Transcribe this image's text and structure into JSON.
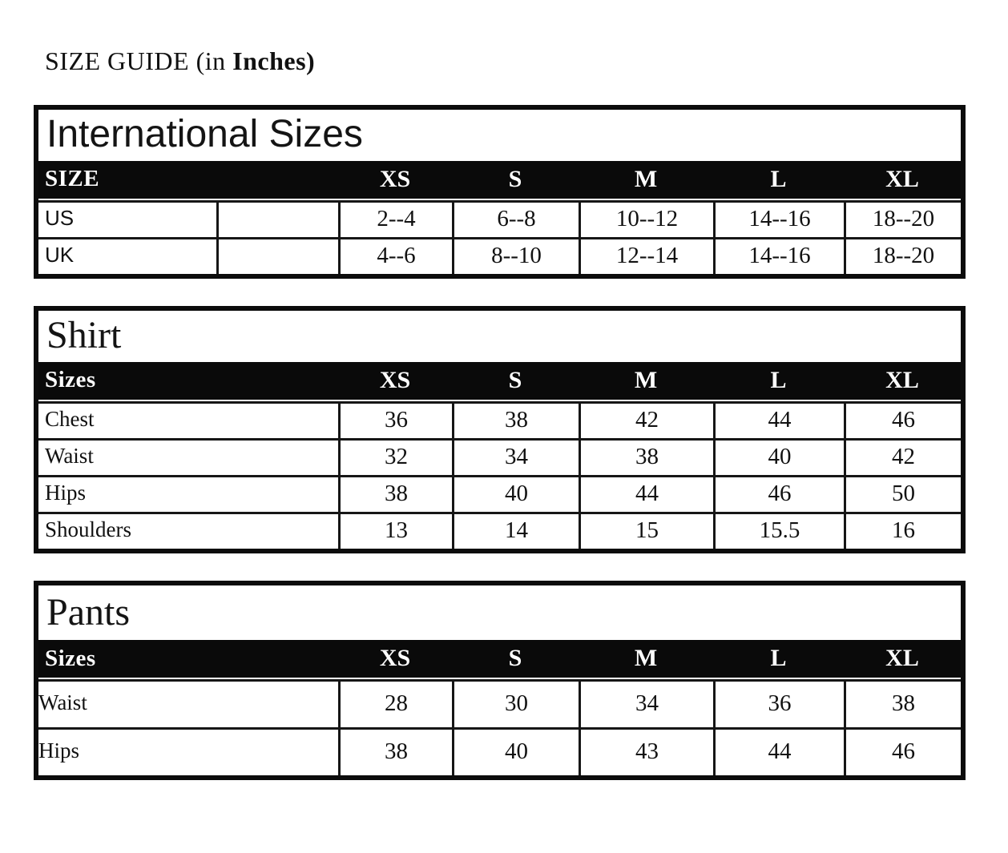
{
  "page": {
    "title_prefix": "SIZE GUIDE (in ",
    "title_bold": "Inches)"
  },
  "colors": {
    "header_bg": "#0a0a0a",
    "header_text": "#ffffff",
    "border": "#161616",
    "background": "#ffffff"
  },
  "tables": [
    {
      "title": "International Sizes",
      "header": {
        "label": "SIZE",
        "cols": [
          "XS",
          "S",
          "M",
          "L",
          "XL"
        ]
      },
      "rows": [
        {
          "label": "US",
          "values": [
            "2--4",
            "6--8",
            "10--12",
            "14--16",
            "18--20"
          ]
        },
        {
          "label": "UK",
          "values": [
            "4--6",
            "8--10",
            "12--14",
            "14--16",
            "18--20"
          ]
        }
      ]
    },
    {
      "title": "Shirt",
      "header": {
        "label": "Sizes",
        "cols": [
          "XS",
          "S",
          "M",
          "L",
          "XL"
        ]
      },
      "rows": [
        {
          "label": "Chest",
          "values": [
            "36",
            "38",
            "42",
            "44",
            "46"
          ]
        },
        {
          "label": "Waist",
          "values": [
            "32",
            "34",
            "38",
            "40",
            "42"
          ]
        },
        {
          "label": "Hips",
          "values": [
            "38",
            "40",
            "44",
            "46",
            "50"
          ]
        },
        {
          "label": "Shoulders",
          "values": [
            "13",
            "14",
            "15",
            "15.5",
            "16"
          ]
        }
      ]
    },
    {
      "title": "Pants",
      "header": {
        "label": "Sizes",
        "cols": [
          "XS",
          "S",
          "M",
          "L",
          "XL"
        ]
      },
      "rows": [
        {
          "label": "Waist",
          "values": [
            "28",
            "30",
            "34",
            "36",
            "38"
          ]
        },
        {
          "label": "Hips",
          "values": [
            "38",
            "40",
            "43",
            "44",
            "46"
          ]
        }
      ]
    }
  ]
}
